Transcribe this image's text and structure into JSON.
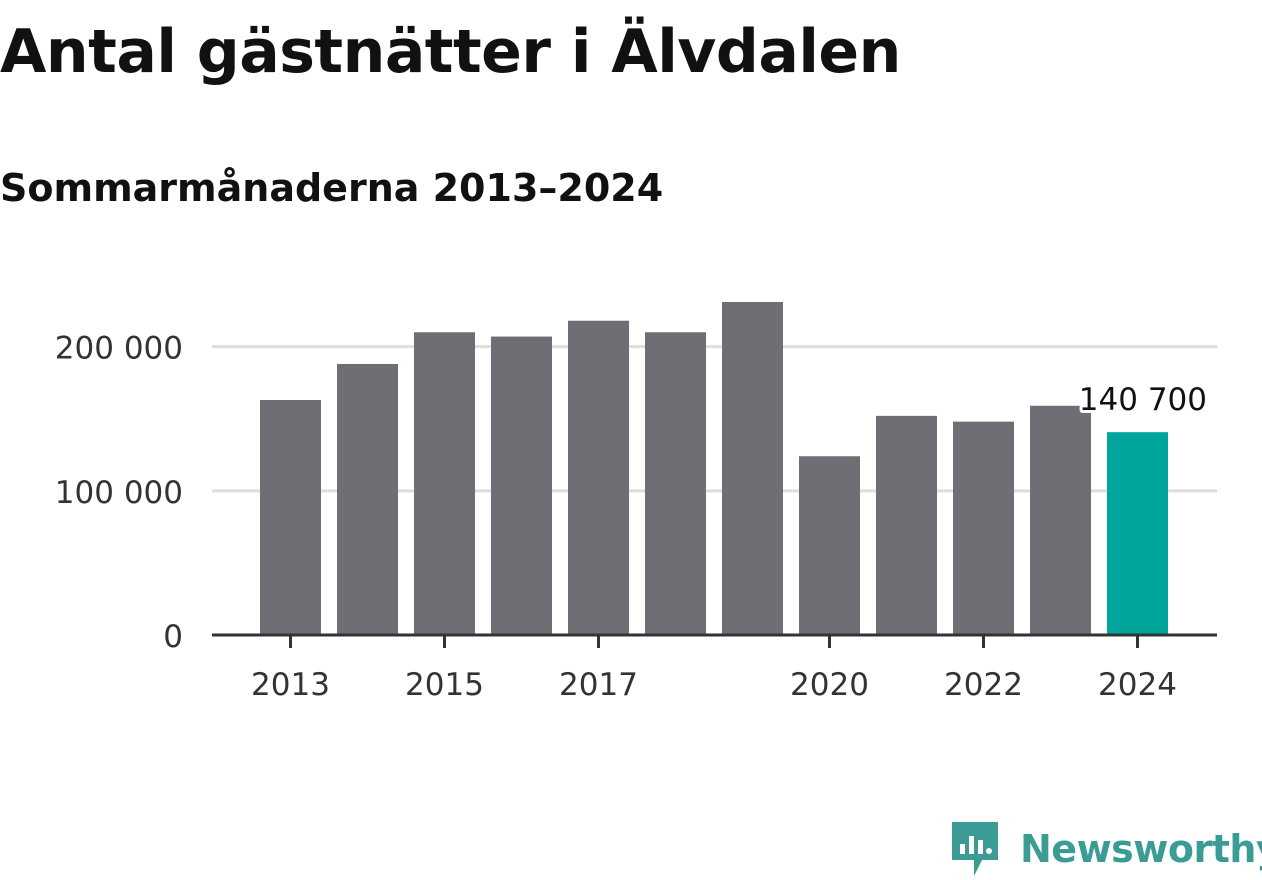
{
  "title": "Antal gästnätter i Älvdalen",
  "subtitle": "Sommarmånaderna 2013–2024",
  "brand": {
    "name": "Newsworthy",
    "icon": "newsworthy-logo-icon",
    "color": "#3a9c95"
  },
  "colors": {
    "bar": "#6f6e75",
    "highlight": "#00a69c",
    "grid": "#dedede",
    "axis": "#333333"
  },
  "chart_data": {
    "type": "bar",
    "title": "Antal gästnätter i Älvdalen",
    "subtitle": "Sommarmånaderna 2013–2024",
    "xlabel": "",
    "ylabel": "",
    "categories": [
      "2013",
      "2014",
      "2015",
      "2016",
      "2017",
      "2018",
      "2019",
      "2020",
      "2021",
      "2022",
      "2023",
      "2024"
    ],
    "values": [
      163000,
      188000,
      210000,
      207000,
      218000,
      210000,
      231000,
      124000,
      152000,
      148000,
      159000,
      140700
    ],
    "highlight_index": 11,
    "ylim": [
      0,
      240000
    ],
    "yticks": [
      0,
      100000,
      200000
    ],
    "ytick_labels": [
      "0",
      "100 000",
      "200 000"
    ],
    "xtick_labels": [
      "2013",
      "2015",
      "2017",
      "2020",
      "2022",
      "2024"
    ],
    "annotation": {
      "index": 11,
      "label": "140 700"
    },
    "grid": true,
    "legend": "none"
  }
}
